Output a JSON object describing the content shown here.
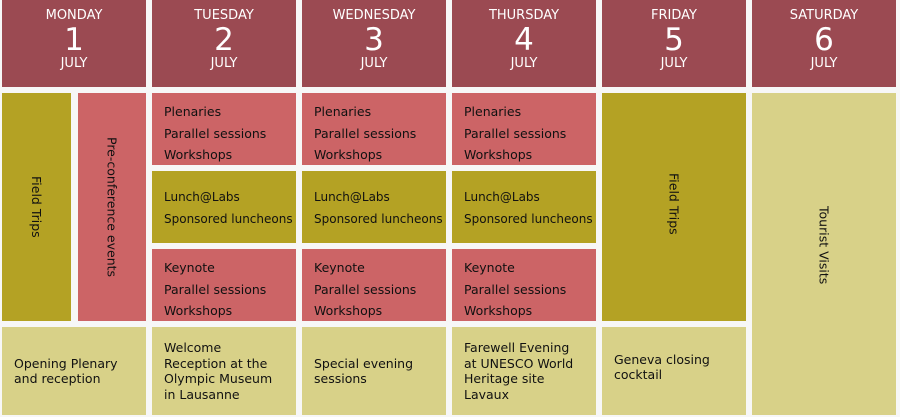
{
  "colors": {
    "header": "#9b4a52",
    "sessions": "#cc6466",
    "lunch": "#b4a224",
    "evening": "#d8d188"
  },
  "days": [
    {
      "day": "MONDAY",
      "date": "1",
      "month": "JULY"
    },
    {
      "day": "TUESDAY",
      "date": "2",
      "month": "JULY"
    },
    {
      "day": "WEDNESDAY",
      "date": "3",
      "month": "JULY"
    },
    {
      "day": "THURSDAY",
      "date": "4",
      "month": "JULY"
    },
    {
      "day": "FRIDAY",
      "date": "5",
      "month": "JULY"
    },
    {
      "day": "SATURDAY",
      "date": "6",
      "month": "JULY"
    }
  ],
  "monday": {
    "field_trips": "Field Trips",
    "pre_conference": "Pre-conference events",
    "evening": "Opening Plenary and reception"
  },
  "tuesday": {
    "morning": [
      "Plenaries",
      "Parallel sessions",
      "Workshops"
    ],
    "lunch": [
      "Lunch@Labs",
      "Sponsored luncheons"
    ],
    "afternoon": [
      "Keynote",
      "Parallel sessions",
      "Workshops"
    ],
    "evening": "Welcome Reception at the Olympic Museum in Lausanne"
  },
  "wednesday": {
    "morning": [
      "Plenaries",
      "Parallel sessions",
      "Workshops"
    ],
    "lunch": [
      "Lunch@Labs",
      "Sponsored luncheons"
    ],
    "afternoon": [
      "Keynote",
      "Parallel sessions",
      "Workshops"
    ],
    "evening": "Special evening sessions"
  },
  "thursday": {
    "morning": [
      "Plenaries",
      "Parallel sessions",
      "Workshops"
    ],
    "lunch": [
      "Lunch@Labs",
      "Sponsored luncheons"
    ],
    "afternoon": [
      "Keynote",
      "Parallel sessions",
      "Workshops"
    ],
    "evening": "Farewell Evening at UNESCO World Heritage site Lavaux"
  },
  "friday": {
    "field_trips": "Field Trips",
    "evening": "Geneva closing cocktail"
  },
  "saturday": {
    "tourist": "Tourist Visits"
  }
}
